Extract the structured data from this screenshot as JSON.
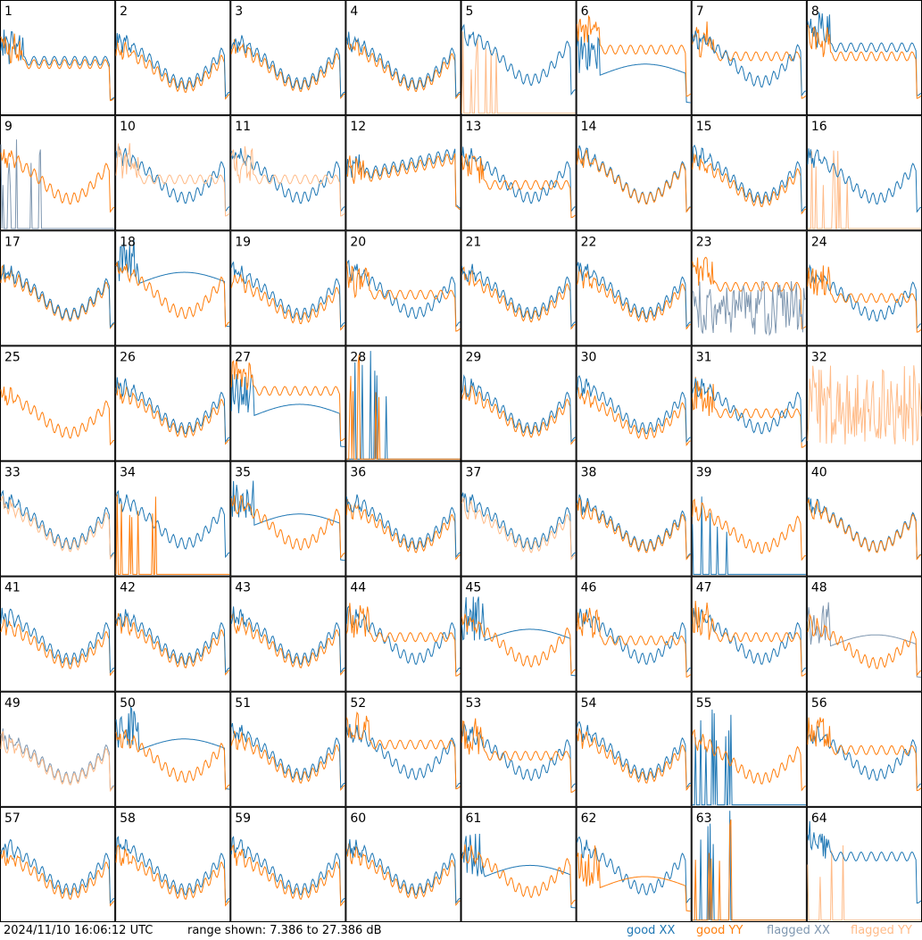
{
  "footer": {
    "timestamp": "2024/11/10 16:06:12 UTC",
    "range_text": "range shown: 7.386 to 27.386 dB"
  },
  "legend": [
    {
      "label": "good XX",
      "color": "#1f77b4"
    },
    {
      "label": "good YY",
      "color": "#ff7f0e"
    },
    {
      "label": "flagged XX",
      "color": "#7f97b0"
    },
    {
      "label": "flagged YY",
      "color": "#ffbb88"
    }
  ],
  "chart_data": {
    "type": "line",
    "layout": "small-multiples 8x8",
    "ylim": [
      7.386,
      27.386
    ],
    "yunit": "dB",
    "grid": false,
    "legend_placement": "bottom-right",
    "panels": [
      {
        "label": "1",
        "xx": "good",
        "yy": "good",
        "xx_shape": "flat",
        "yy_shape": "flat",
        "xx_level": 0.48,
        "yy_level": 0.45,
        "dominant": "yy"
      },
      {
        "label": "2",
        "xx": "good",
        "yy": "good",
        "xx_shape": "bowl",
        "yy_shape": "bowl",
        "xx_level": 0.7,
        "yy_level": 0.62,
        "dominant": "xx"
      },
      {
        "label": "3",
        "xx": "good",
        "yy": "good",
        "xx_shape": "bowl",
        "yy_shape": "bowl",
        "xx_level": 0.7,
        "yy_level": 0.64,
        "dominant": "xx"
      },
      {
        "label": "4",
        "xx": "good",
        "yy": "good",
        "xx_shape": "bowl",
        "yy_shape": "bowl",
        "xx_level": 0.7,
        "yy_level": 0.64,
        "dominant": "xx"
      },
      {
        "label": "5",
        "xx": "good",
        "yy": "flagged",
        "xx_shape": "bowl",
        "yy_shape": "spike",
        "xx_level": 0.78,
        "yy_level": 0.3,
        "dominant": "xx"
      },
      {
        "label": "6",
        "xx": "good",
        "yy": "good",
        "xx_shape": "dip",
        "yy_shape": "flat",
        "xx_level": 0.35,
        "yy_level": 0.58,
        "dominant": "yy"
      },
      {
        "label": "7",
        "xx": "good",
        "yy": "good",
        "xx_shape": "bowl",
        "yy_shape": "flat",
        "xx_level": 0.74,
        "yy_level": 0.52,
        "dominant": "xx"
      },
      {
        "label": "8",
        "xx": "good",
        "yy": "good",
        "xx_shape": "flat",
        "yy_shape": "flat",
        "xx_level": 0.6,
        "yy_level": 0.52,
        "dominant": "yy"
      },
      {
        "label": "9",
        "xx": "flagged",
        "yy": "good",
        "xx_shape": "spike",
        "yy_shape": "bowl",
        "xx_level": 0.35,
        "yy_level": 0.7,
        "dominant": "yy"
      },
      {
        "label": "10",
        "xx": "good",
        "yy": "flagged",
        "xx_shape": "bowl",
        "yy_shape": "flat",
        "xx_level": 0.72,
        "yy_level": 0.45,
        "dominant": "yy"
      },
      {
        "label": "11",
        "xx": "good",
        "yy": "flagged",
        "xx_shape": "bowl",
        "yy_shape": "flat",
        "xx_level": 0.72,
        "yy_level": 0.45,
        "dominant": "yy"
      },
      {
        "label": "12",
        "xx": "good",
        "yy": "good",
        "xx_shape": "rise",
        "yy_shape": "rise",
        "xx_level": 0.66,
        "yy_level": 0.62,
        "dominant": "yy"
      },
      {
        "label": "13",
        "xx": "good",
        "yy": "good",
        "xx_shape": "bowl",
        "yy_shape": "flat",
        "xx_level": 0.72,
        "yy_level": 0.4,
        "dominant": "yy"
      },
      {
        "label": "14",
        "xx": "good",
        "yy": "good",
        "xx_shape": "bowl",
        "yy_shape": "bowl",
        "xx_level": 0.72,
        "yy_level": 0.7,
        "dominant": "yy"
      },
      {
        "label": "15",
        "xx": "good",
        "yy": "good",
        "xx_shape": "bowl",
        "yy_shape": "bowl",
        "xx_level": 0.72,
        "yy_level": 0.64,
        "dominant": "xx"
      },
      {
        "label": "16",
        "xx": "good",
        "yy": "flagged",
        "xx_shape": "bowl",
        "yy_shape": "spike",
        "xx_level": 0.7,
        "yy_level": 0.3,
        "dominant": "xx"
      },
      {
        "label": "17",
        "xx": "good",
        "yy": "good",
        "xx_shape": "bowl",
        "yy_shape": "bowl",
        "xx_level": 0.7,
        "yy_level": 0.66,
        "dominant": "xx"
      },
      {
        "label": "18",
        "xx": "good",
        "yy": "good",
        "xx_shape": "dip",
        "yy_shape": "bowl",
        "xx_level": 0.55,
        "yy_level": 0.72,
        "dominant": "yy"
      },
      {
        "label": "19",
        "xx": "good",
        "yy": "good",
        "xx_shape": "bowl",
        "yy_shape": "bowl",
        "xx_level": 0.7,
        "yy_level": 0.6,
        "dominant": "xx"
      },
      {
        "label": "20",
        "xx": "good",
        "yy": "good",
        "xx_shape": "bowl",
        "yy_shape": "flat",
        "xx_level": 0.72,
        "yy_level": 0.45,
        "dominant": "yy"
      },
      {
        "label": "21",
        "xx": "good",
        "yy": "good",
        "xx_shape": "bowl",
        "yy_shape": "bowl",
        "xx_level": 0.72,
        "yy_level": 0.64,
        "dominant": "xx"
      },
      {
        "label": "22",
        "xx": "good",
        "yy": "good",
        "xx_shape": "bowl",
        "yy_shape": "bowl",
        "xx_level": 0.72,
        "yy_level": 0.64,
        "dominant": "xx"
      },
      {
        "label": "23",
        "xx": "flagged",
        "yy": "good",
        "xx_shape": "noise",
        "yy_shape": "flat",
        "xx_level": 0.3,
        "yy_level": 0.52,
        "dominant": "xx"
      },
      {
        "label": "24",
        "xx": "good",
        "yy": "good",
        "xx_shape": "bowl",
        "yy_shape": "flat",
        "xx_level": 0.66,
        "yy_level": 0.42,
        "dominant": "yy"
      },
      {
        "label": "25",
        "xx": "none",
        "yy": "good",
        "xx_shape": "none",
        "yy_shape": "bowl",
        "xx_level": 0.0,
        "yy_level": 0.62,
        "dominant": "yy"
      },
      {
        "label": "26",
        "xx": "good",
        "yy": "good",
        "xx_shape": "bowl",
        "yy_shape": "bowl",
        "xx_level": 0.72,
        "yy_level": 0.64,
        "dominant": "xx"
      },
      {
        "label": "27",
        "xx": "good",
        "yy": "good",
        "xx_shape": "dip",
        "yy_shape": "flat",
        "xx_level": 0.4,
        "yy_level": 0.62,
        "dominant": "yy"
      },
      {
        "label": "28",
        "xx": "good",
        "yy": "good",
        "xx_shape": "spike",
        "yy_shape": "spike",
        "xx_level": 0.5,
        "yy_level": 0.5,
        "dominant": "yy"
      },
      {
        "label": "29",
        "xx": "good",
        "yy": "good",
        "xx_shape": "bowl",
        "yy_shape": "bowl",
        "xx_level": 0.72,
        "yy_level": 0.64,
        "dominant": "xx"
      },
      {
        "label": "30",
        "xx": "good",
        "yy": "good",
        "xx_shape": "bowl",
        "yy_shape": "bowl",
        "xx_level": 0.72,
        "yy_level": 0.6,
        "dominant": "xx"
      },
      {
        "label": "31",
        "xx": "good",
        "yy": "good",
        "xx_shape": "bowl",
        "yy_shape": "flat",
        "xx_level": 0.72,
        "yy_level": 0.42,
        "dominant": "xx"
      },
      {
        "label": "32",
        "xx": "none",
        "yy": "flagged",
        "xx_shape": "none",
        "yy_shape": "noise",
        "xx_level": 0.0,
        "yy_level": 0.45,
        "dominant": "yy"
      },
      {
        "label": "33",
        "xx": "good",
        "yy": "flagged",
        "xx_shape": "bowl",
        "yy_shape": "bowl",
        "xx_level": 0.72,
        "yy_level": 0.66,
        "dominant": "yy"
      },
      {
        "label": "34",
        "xx": "good",
        "yy": "good",
        "xx_shape": "bowl",
        "yy_shape": "spike",
        "xx_level": 0.72,
        "yy_level": 0.5,
        "dominant": "yy"
      },
      {
        "label": "35",
        "xx": "good",
        "yy": "good",
        "xx_shape": "dip",
        "yy_shape": "bowl",
        "xx_level": 0.45,
        "yy_level": 0.7,
        "dominant": "yy"
      },
      {
        "label": "36",
        "xx": "good",
        "yy": "good",
        "xx_shape": "bowl",
        "yy_shape": "bowl",
        "xx_level": 0.72,
        "yy_level": 0.64,
        "dominant": "xx"
      },
      {
        "label": "37",
        "xx": "good",
        "yy": "flagged",
        "xx_shape": "bowl",
        "yy_shape": "bowl",
        "xx_level": 0.72,
        "yy_level": 0.64,
        "dominant": "yy"
      },
      {
        "label": "38",
        "xx": "good",
        "yy": "good",
        "xx_shape": "bowl",
        "yy_shape": "bowl",
        "xx_level": 0.68,
        "yy_level": 0.64,
        "dominant": "yy"
      },
      {
        "label": "39",
        "xx": "good",
        "yy": "good",
        "xx_shape": "spike",
        "yy_shape": "bowl",
        "xx_level": 0.3,
        "yy_level": 0.62,
        "dominant": "yy"
      },
      {
        "label": "40",
        "xx": "good",
        "yy": "good",
        "xx_shape": "bowl",
        "yy_shape": "bowl",
        "xx_level": 0.66,
        "yy_level": 0.64,
        "dominant": "yy"
      },
      {
        "label": "41",
        "xx": "good",
        "yy": "good",
        "xx_shape": "bowl",
        "yy_shape": "bowl",
        "xx_level": 0.72,
        "yy_level": 0.62,
        "dominant": "xx"
      },
      {
        "label": "42",
        "xx": "good",
        "yy": "good",
        "xx_shape": "bowl",
        "yy_shape": "bowl",
        "xx_level": 0.72,
        "yy_level": 0.64,
        "dominant": "xx"
      },
      {
        "label": "43",
        "xx": "good",
        "yy": "good",
        "xx_shape": "bowl",
        "yy_shape": "bowl",
        "xx_level": 0.72,
        "yy_level": 0.64,
        "dominant": "xx"
      },
      {
        "label": "44",
        "xx": "good",
        "yy": "good",
        "xx_shape": "bowl",
        "yy_shape": "flat",
        "xx_level": 0.72,
        "yy_level": 0.48,
        "dominant": "yy"
      },
      {
        "label": "45",
        "xx": "good",
        "yy": "good",
        "xx_shape": "dip",
        "yy_shape": "bowl",
        "xx_level": 0.45,
        "yy_level": 0.66,
        "dominant": "yy"
      },
      {
        "label": "46",
        "xx": "good",
        "yy": "good",
        "xx_shape": "bowl",
        "yy_shape": "flat",
        "xx_level": 0.72,
        "yy_level": 0.45,
        "dominant": "yy"
      },
      {
        "label": "47",
        "xx": "good",
        "yy": "good",
        "xx_shape": "bowl",
        "yy_shape": "flat",
        "xx_level": 0.72,
        "yy_level": 0.48,
        "dominant": "yy"
      },
      {
        "label": "48",
        "xx": "flagged",
        "yy": "good",
        "xx_shape": "dip",
        "yy_shape": "bowl",
        "xx_level": 0.4,
        "yy_level": 0.62,
        "dominant": "yy"
      },
      {
        "label": "49",
        "xx": "flagged",
        "yy": "flagged",
        "xx_shape": "bowl",
        "yy_shape": "bowl",
        "xx_level": 0.64,
        "yy_level": 0.6,
        "dominant": "yy"
      },
      {
        "label": "50",
        "xx": "good",
        "yy": "good",
        "xx_shape": "dip",
        "yy_shape": "bowl",
        "xx_level": 0.5,
        "yy_level": 0.66,
        "dominant": "yy"
      },
      {
        "label": "51",
        "xx": "good",
        "yy": "good",
        "xx_shape": "bowl",
        "yy_shape": "bowl",
        "xx_level": 0.72,
        "yy_level": 0.64,
        "dominant": "xx"
      },
      {
        "label": "52",
        "xx": "good",
        "yy": "good",
        "xx_shape": "bowl",
        "yy_shape": "flat",
        "xx_level": 0.72,
        "yy_level": 0.55,
        "dominant": "yy"
      },
      {
        "label": "53",
        "xx": "good",
        "yy": "good",
        "xx_shape": "bowl",
        "yy_shape": "flat",
        "xx_level": 0.7,
        "yy_level": 0.45,
        "dominant": "yy"
      },
      {
        "label": "54",
        "xx": "good",
        "yy": "good",
        "xx_shape": "bowl",
        "yy_shape": "bowl",
        "xx_level": 0.72,
        "yy_level": 0.64,
        "dominant": "yy"
      },
      {
        "label": "55",
        "xx": "good",
        "yy": "good",
        "xx_shape": "spike",
        "yy_shape": "bowl",
        "xx_level": 0.4,
        "yy_level": 0.62,
        "dominant": "yy"
      },
      {
        "label": "56",
        "xx": "good",
        "yy": "good",
        "xx_shape": "bowl",
        "yy_shape": "flat",
        "xx_level": 0.7,
        "yy_level": 0.5,
        "dominant": "yy"
      },
      {
        "label": "57",
        "xx": "good",
        "yy": "good",
        "xx_shape": "bowl",
        "yy_shape": "bowl",
        "xx_level": 0.72,
        "yy_level": 0.62,
        "dominant": "xx"
      },
      {
        "label": "58",
        "xx": "good",
        "yy": "good",
        "xx_shape": "bowl",
        "yy_shape": "bowl",
        "xx_level": 0.72,
        "yy_level": 0.62,
        "dominant": "yy"
      },
      {
        "label": "59",
        "xx": "good",
        "yy": "good",
        "xx_shape": "bowl",
        "yy_shape": "bowl",
        "xx_level": 0.72,
        "yy_level": 0.62,
        "dominant": "yy"
      },
      {
        "label": "60",
        "xx": "good",
        "yy": "good",
        "xx_shape": "bowl",
        "yy_shape": "bowl",
        "xx_level": 0.72,
        "yy_level": 0.64,
        "dominant": "xx"
      },
      {
        "label": "61",
        "xx": "good",
        "yy": "good",
        "xx_shape": "dip",
        "yy_shape": "bowl",
        "xx_level": 0.4,
        "yy_level": 0.66,
        "dominant": "yy"
      },
      {
        "label": "62",
        "xx": "good",
        "yy": "good",
        "xx_shape": "bowl",
        "yy_shape": "dip",
        "xx_level": 0.72,
        "yy_level": 0.3,
        "dominant": "yy"
      },
      {
        "label": "63",
        "xx": "good",
        "yy": "good",
        "xx_shape": "spike",
        "yy_shape": "spike",
        "xx_level": 0.5,
        "yy_level": 0.5,
        "dominant": "yy"
      },
      {
        "label": "64",
        "xx": "good",
        "yy": "flagged",
        "xx_shape": "flat",
        "yy_shape": "spike",
        "xx_level": 0.58,
        "yy_level": 0.3,
        "dominant": "xx"
      }
    ]
  }
}
